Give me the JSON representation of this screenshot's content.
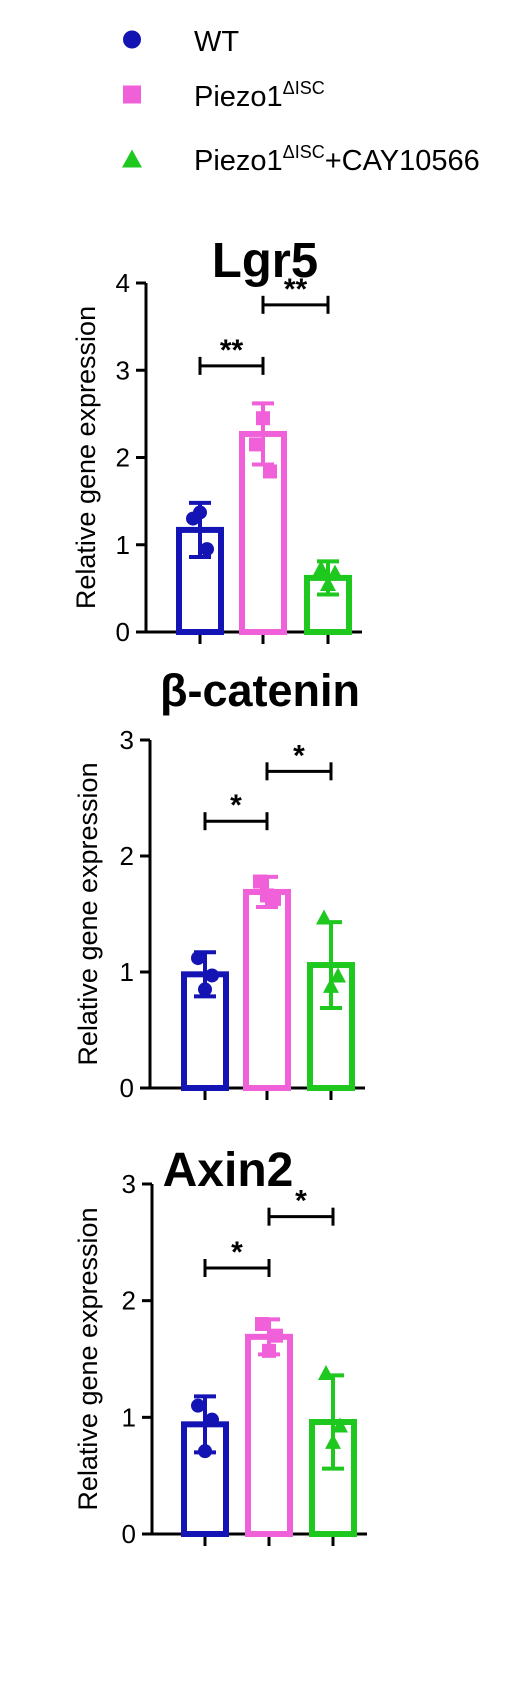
{
  "legend": [
    {
      "label": "WT",
      "sup": "",
      "suffix": "",
      "color": "#1414b4",
      "shape": "circle"
    },
    {
      "label": "Piezo1",
      "sup": "ΔISC",
      "suffix": "",
      "color": "#f060d8",
      "shape": "square"
    },
    {
      "label": "Piezo1",
      "sup": "ΔISC",
      "suffix": "+CAY10566",
      "color": "#1ec81e",
      "shape": "triangle"
    }
  ],
  "chart_data": [
    {
      "type": "bar",
      "title": "Lgr5",
      "ylabel": "Relative gene expression",
      "ylim": [
        0,
        4
      ],
      "yticks": [
        "0",
        "1",
        "2",
        "3",
        "4"
      ],
      "categories": [
        "WT",
        "Piezo1ΔISC",
        "Piezo1ΔISC+CAY10566"
      ],
      "values": [
        1.17,
        2.27,
        0.62
      ],
      "errors": [
        0.31,
        0.35,
        0.19
      ],
      "points": [
        [
          1.3,
          1.37,
          0.95
        ],
        [
          2.15,
          2.45,
          1.84
        ],
        [
          0.73,
          0.55,
          0.68
        ]
      ],
      "colors": [
        "#1414b4",
        "#f060d8",
        "#1ec81e"
      ],
      "significance": [
        {
          "from": 0,
          "to": 1,
          "label": "**",
          "y": 3.05
        },
        {
          "from": 1,
          "to": 2,
          "label": "**",
          "y": 3.75
        }
      ]
    },
    {
      "type": "bar",
      "title": "β-catenin",
      "ylabel": "Relative gene expression",
      "ylim": [
        0,
        3
      ],
      "yticks": [
        "0",
        "1",
        "2",
        "3"
      ],
      "categories": [
        "WT",
        "Piezo1ΔISC",
        "Piezo1ΔISC+CAY10566"
      ],
      "values": [
        0.98,
        1.69,
        1.06
      ],
      "errors": [
        0.19,
        0.13,
        0.37
      ],
      "points": [
        [
          1.12,
          0.85,
          0.97
        ],
        [
          1.78,
          1.66,
          1.63
        ],
        [
          1.47,
          0.88,
          0.97
        ]
      ],
      "colors": [
        "#1414b4",
        "#f060d8",
        "#1ec81e"
      ],
      "significance": [
        {
          "from": 0,
          "to": 1,
          "label": "*",
          "y": 2.3
        },
        {
          "from": 1,
          "to": 2,
          "label": "*",
          "y": 2.73
        }
      ]
    },
    {
      "type": "bar",
      "title": "Axin2",
      "ylabel": "Relative gene expression",
      "ylim": [
        0,
        3
      ],
      "yticks": [
        "0",
        "1",
        "2",
        "3"
      ],
      "categories": [
        "WT",
        "Piezo1ΔISC",
        "Piezo1ΔISC+CAY10566"
      ],
      "values": [
        0.94,
        1.69,
        0.96
      ],
      "errors": [
        0.24,
        0.15,
        0.4
      ],
      "points": [
        [
          1.1,
          0.71,
          0.98
        ],
        [
          1.8,
          1.57,
          1.7
        ],
        [
          1.38,
          0.79,
          0.93
        ]
      ],
      "colors": [
        "#1414b4",
        "#f060d8",
        "#1ec81e"
      ],
      "significance": [
        {
          "from": 0,
          "to": 1,
          "label": "*",
          "y": 2.28
        },
        {
          "from": 1,
          "to": 2,
          "label": "*",
          "y": 2.72
        }
      ]
    }
  ]
}
